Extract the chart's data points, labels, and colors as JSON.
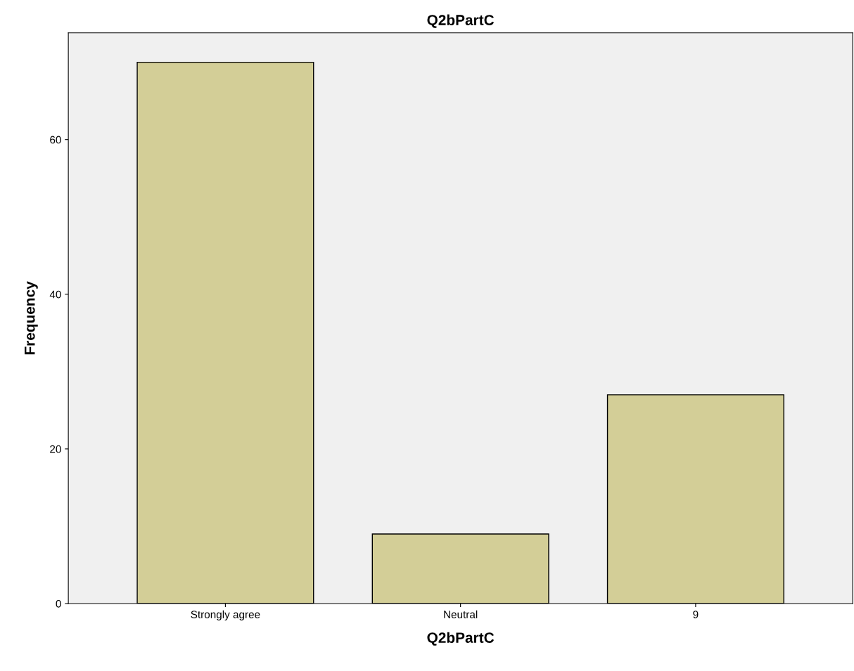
{
  "chart_data": {
    "type": "bar",
    "title": "Q2bPartC",
    "xlabel": "Q2bPartC",
    "ylabel": "Frequency",
    "categories": [
      "Strongly agree",
      "Neutral",
      "9"
    ],
    "values": [
      70,
      9,
      27
    ],
    "color": "#d3ce97",
    "ylim": [
      0,
      73.8
    ],
    "yticks": [
      0,
      20,
      40,
      60
    ],
    "grid": false,
    "legend": false
  }
}
